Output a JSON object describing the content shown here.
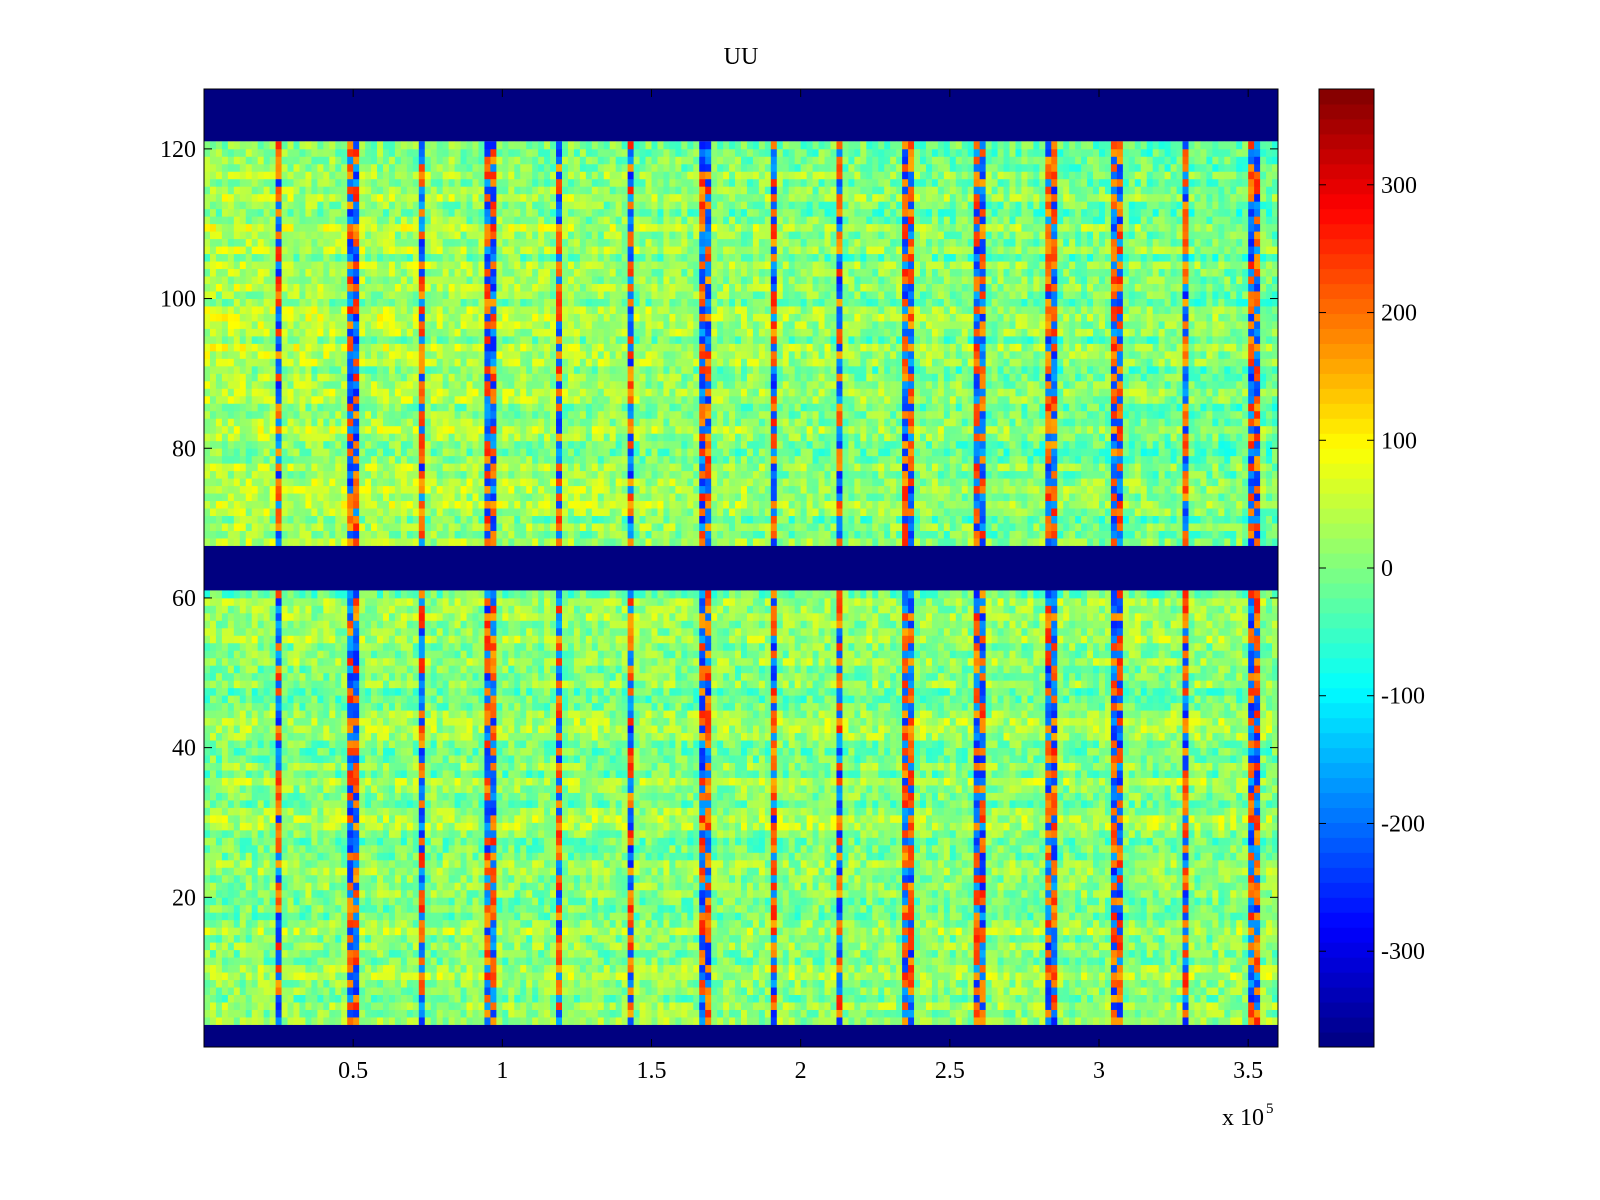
{
  "chart_data": {
    "type": "heatmap",
    "title": "UU",
    "xlabel": "",
    "ylabel": "",
    "x_range": [
      0,
      3.6
    ],
    "y_range": [
      0,
      128
    ],
    "x_multiplier_label": "x 10",
    "x_multiplier_exponent": "5",
    "x_ticks": [
      {
        "value": 0.5,
        "label": "0.5"
      },
      {
        "value": 1,
        "label": "1"
      },
      {
        "value": 1.5,
        "label": "1.5"
      },
      {
        "value": 2,
        "label": "2"
      },
      {
        "value": 2.5,
        "label": "2.5"
      },
      {
        "value": 3,
        "label": "3"
      },
      {
        "value": 3.5,
        "label": "3.5"
      }
    ],
    "y_ticks": [
      {
        "value": 20,
        "label": "20"
      },
      {
        "value": 40,
        "label": "40"
      },
      {
        "value": 60,
        "label": "60"
      },
      {
        "value": 80,
        "label": "80"
      },
      {
        "value": 100,
        "label": "100"
      },
      {
        "value": 120,
        "label": "120"
      }
    ],
    "colorbar": {
      "range": [
        -375,
        375
      ],
      "colormap": "jet",
      "ticks": [
        {
          "value": 300,
          "label": "300"
        },
        {
          "value": 200,
          "label": "200"
        },
        {
          "value": 100,
          "label": "100"
        },
        {
          "value": 0,
          "label": "0"
        },
        {
          "value": -100,
          "label": "-100"
        },
        {
          "value": -200,
          "label": "-200"
        },
        {
          "value": -300,
          "label": "-300"
        }
      ]
    },
    "masked_value": -375,
    "masked_row_bands": [
      [
        0,
        3
      ],
      [
        61,
        67
      ],
      [
        121,
        128
      ]
    ],
    "active_row_bands": [
      [
        3,
        61
      ],
      [
        67,
        121
      ]
    ],
    "background_level": 10,
    "vertical_stripe_x": [
      0.25,
      0.5,
      0.73,
      0.96,
      1.19,
      1.43,
      1.68,
      1.91,
      2.13,
      2.36,
      2.6,
      2.84,
      3.06,
      3.29,
      3.52
    ],
    "stripe_amplitude": 220
  }
}
